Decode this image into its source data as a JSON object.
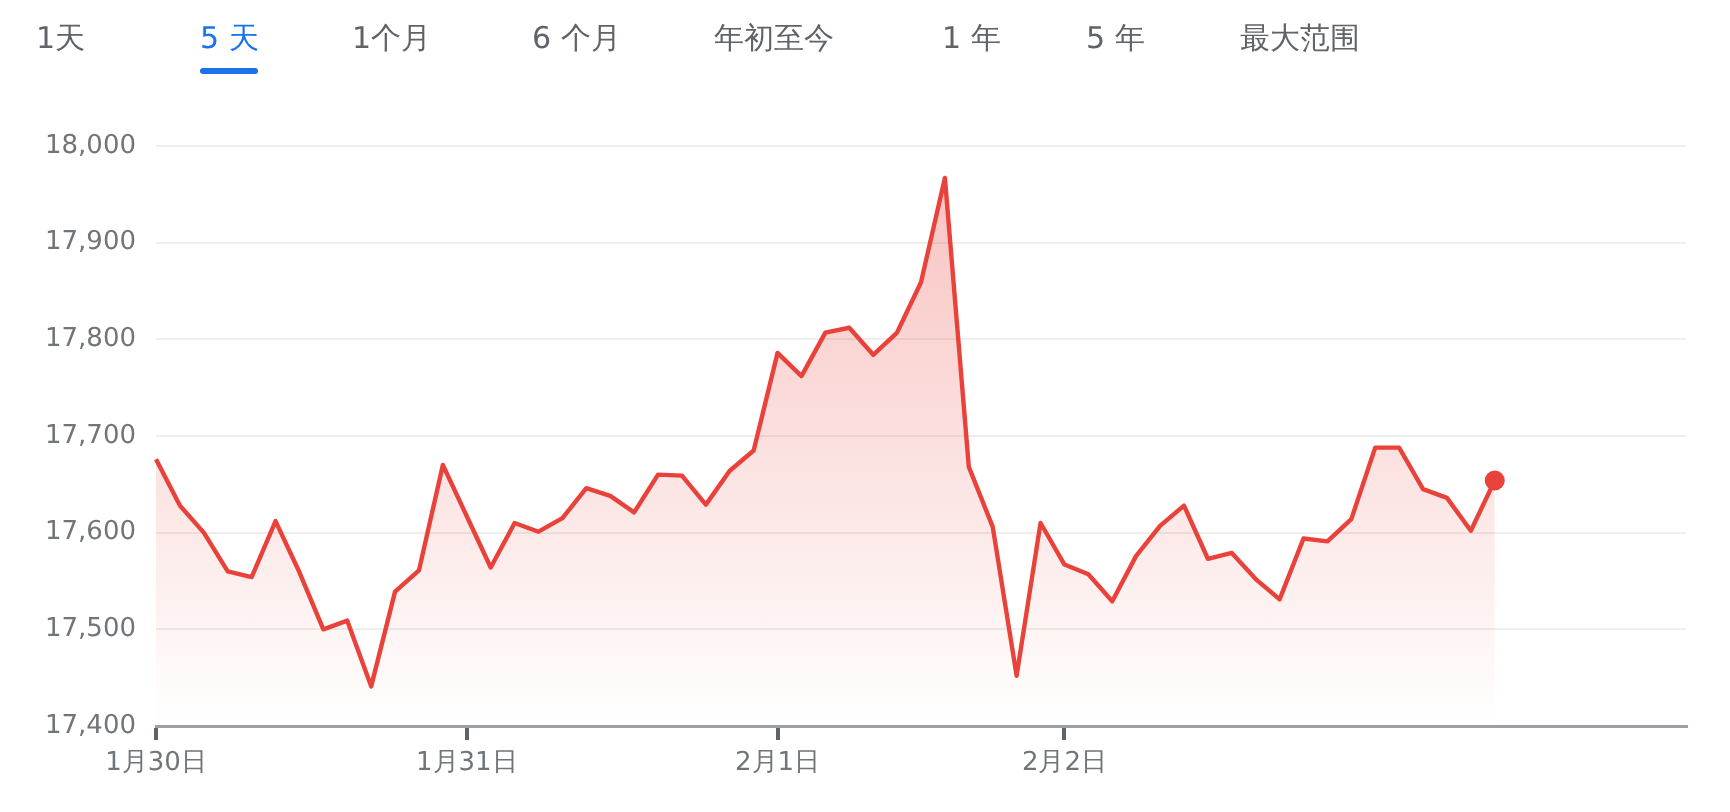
{
  "chart_data": {
    "type": "area",
    "categories": [
      "1月30日",
      null,
      null,
      null,
      null,
      null,
      null,
      null,
      null,
      null,
      null,
      null,
      null,
      "1月31日",
      null,
      null,
      null,
      null,
      null,
      null,
      null,
      null,
      null,
      null,
      null,
      null,
      "2月1日",
      null,
      null,
      null,
      null,
      null,
      null,
      null,
      null,
      null,
      null,
      null,
      "2月2日",
      null,
      null,
      null,
      null,
      null,
      null,
      null,
      null,
      null,
      null,
      null,
      null,
      null,
      null,
      null,
      null,
      null,
      null,
      null,
      null,
      null,
      null,
      null,
      null,
      null,
      null
    ],
    "series": [
      {
        "color": "#e8423a",
        "values": [
          17676,
          17628,
          17600,
          17560,
          17554,
          17612,
          17559,
          17500,
          17509,
          17441,
          17539,
          17561,
          17670,
          17617,
          17564,
          17610,
          17601,
          17615,
          17646,
          17638,
          17621,
          17660,
          17659,
          17629,
          17664,
          17685,
          17786,
          17762,
          17807,
          17812,
          17784,
          17807,
          17859,
          17967,
          17668,
          17606,
          17452,
          17610,
          17567,
          17557,
          17529,
          17576,
          17607,
          17628,
          17573,
          17579,
          17552,
          17531,
          17594,
          17591,
          17614,
          17688,
          17688,
          17645,
          17636,
          17602,
          17654,
          null,
          null,
          null,
          null,
          null,
          null,
          null,
          null
        ]
      }
    ],
    "ylim": [
      17400,
      18000
    ],
    "yticks": [
      {
        "value": 17400,
        "label": "17,400"
      },
      {
        "value": 17500,
        "label": "17,500"
      },
      {
        "value": 17600,
        "label": "17,600"
      },
      {
        "value": 17700,
        "label": "17,700"
      },
      {
        "value": 17800,
        "label": "17,800"
      },
      {
        "value": 17900,
        "label": "17,900"
      },
      {
        "value": 18000,
        "label": "18,000"
      }
    ],
    "grid": "y",
    "legend": false,
    "annotations": [
      "1天",
      "5 天",
      "1个月",
      "6 个月",
      "年初至今",
      "1 年",
      "5 年",
      "最大范围"
    ]
  }
}
